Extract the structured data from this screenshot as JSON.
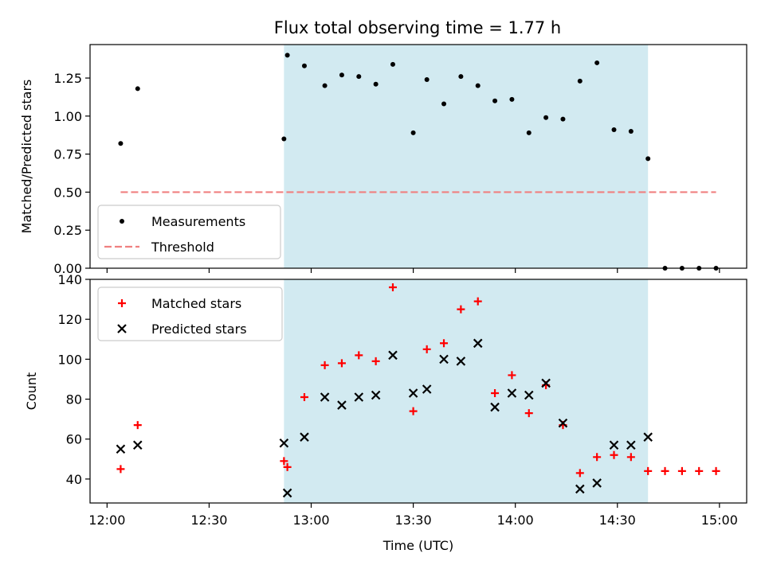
{
  "chart_data": [
    {
      "type": "scatter",
      "title": "Flux total observing time = 1.77 h",
      "ylabel": "Matched/Predicted stars",
      "xlabel": "",
      "ylim": [
        0,
        1.47
      ],
      "yticks": [
        "0.00",
        "0.25",
        "0.50",
        "0.75",
        "1.00",
        "1.25"
      ],
      "ytick_values": [
        0,
        0.25,
        0.5,
        0.75,
        1.0,
        1.25
      ],
      "legend_position": "lower-left",
      "shaded_region": {
        "x_start": "12:52",
        "x_end": "14:39",
        "color": "#add8e6"
      },
      "series": [
        {
          "name": "Measurements",
          "marker": "dot",
          "color": "#000000",
          "x": [
            "12:04",
            "12:09",
            "12:52",
            "12:53",
            "12:58",
            "13:04",
            "13:09",
            "13:14",
            "13:19",
            "13:24",
            "13:30",
            "13:34",
            "13:39",
            "13:44",
            "13:49",
            "13:54",
            "13:59",
            "14:04",
            "14:09",
            "14:14",
            "14:19",
            "14:24",
            "14:29",
            "14:34",
            "14:39",
            "14:44",
            "14:49",
            "14:54",
            "14:59"
          ],
          "y": [
            0.82,
            1.18,
            0.85,
            1.4,
            1.33,
            1.2,
            1.27,
            1.26,
            1.21,
            1.34,
            0.89,
            1.24,
            1.08,
            1.26,
            1.2,
            1.1,
            1.11,
            0.89,
            0.99,
            0.98,
            1.23,
            1.35,
            0.91,
            0.9,
            0.72,
            0,
            0,
            0,
            0
          ]
        },
        {
          "name": "Threshold",
          "style": "dashed",
          "color": "#f08080",
          "x": [
            "12:04",
            "14:59"
          ],
          "y": [
            0.5,
            0.5
          ]
        }
      ]
    },
    {
      "type": "scatter",
      "ylabel": "Count",
      "xlabel": "Time (UTC)",
      "ylim": [
        28,
        140
      ],
      "yticks": [
        "40",
        "60",
        "80",
        "100",
        "120",
        "140"
      ],
      "ytick_values": [
        40,
        60,
        80,
        100,
        120,
        140
      ],
      "xlim": [
        "11:55",
        "15:08"
      ],
      "xticks": [
        "12:00",
        "12:30",
        "13:00",
        "13:30",
        "14:00",
        "14:30",
        "15:00"
      ],
      "legend_position": "upper-left",
      "shaded_region": {
        "x_start": "12:52",
        "x_end": "14:39",
        "color": "#add8e6"
      },
      "series": [
        {
          "name": "Matched stars",
          "marker": "plus",
          "color": "#ff0000",
          "x": [
            "12:04",
            "12:09",
            "12:52",
            "12:53",
            "12:58",
            "13:04",
            "13:09",
            "13:14",
            "13:19",
            "13:24",
            "13:30",
            "13:34",
            "13:39",
            "13:44",
            "13:49",
            "13:54",
            "13:59",
            "14:04",
            "14:09",
            "14:14",
            "14:19",
            "14:24",
            "14:29",
            "14:34",
            "14:39",
            "14:44",
            "14:49",
            "14:54",
            "14:59"
          ],
          "y": [
            45,
            67,
            49,
            46,
            81,
            97,
            98,
            102,
            99,
            136,
            74,
            105,
            108,
            125,
            129,
            83,
            92,
            73,
            87,
            67,
            43,
            51,
            52,
            51,
            44,
            44,
            44,
            44,
            44
          ]
        },
        {
          "name": "Predicted stars",
          "marker": "x",
          "color": "#000000",
          "x": [
            "12:04",
            "12:09",
            "12:52",
            "12:53",
            "12:58",
            "13:04",
            "13:09",
            "13:14",
            "13:19",
            "13:24",
            "13:30",
            "13:34",
            "13:39",
            "13:44",
            "13:49",
            "13:54",
            "13:59",
            "14:04",
            "14:09",
            "14:14",
            "14:19",
            "14:24",
            "14:29",
            "14:34",
            "14:39"
          ],
          "y": [
            55,
            57,
            58,
            33,
            61,
            81,
            77,
            81,
            82,
            102,
            83,
            85,
            100,
            99,
            108,
            76,
            83,
            82,
            88,
            68,
            35,
            38,
            57,
            57,
            61
          ]
        }
      ]
    }
  ]
}
